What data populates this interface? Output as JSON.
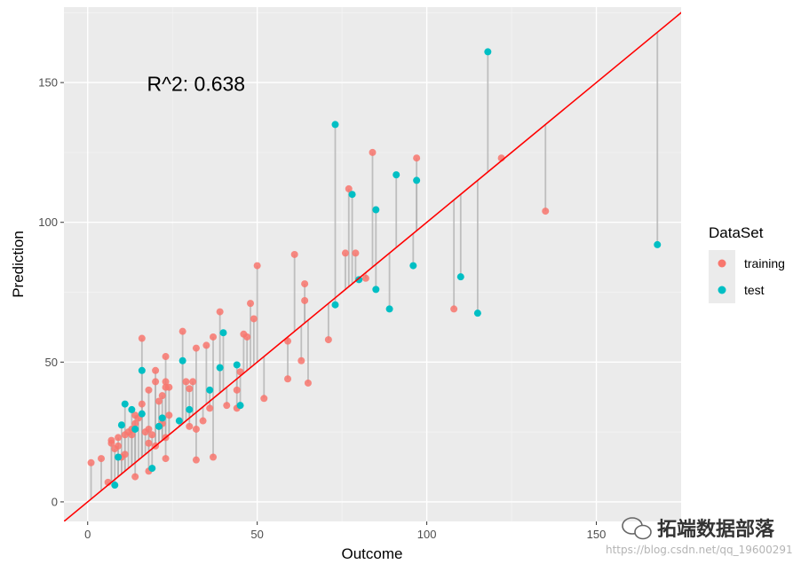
{
  "chart_data": {
    "type": "scatter",
    "xlabel": "Outcome",
    "ylabel": "Prediction",
    "xlim": [
      -7,
      175
    ],
    "ylim": [
      -7,
      177
    ],
    "x_ticks": [
      0,
      50,
      100,
      150
    ],
    "y_ticks": [
      0,
      50,
      100,
      150
    ],
    "grid": true,
    "annotation": "R^2: 0.638",
    "reference_line": "y = x",
    "legend": {
      "title": "DataSet",
      "placement": "right",
      "entries": [
        "training",
        "test"
      ]
    },
    "colors": {
      "training": "#F8766D",
      "test": "#00BFC4",
      "reference": "#FF0000",
      "residual": "#b3b3b3",
      "panel": "#EBEBEB",
      "grid": "#ffffff"
    },
    "series": [
      {
        "name": "training",
        "points": [
          [
            1,
            14
          ],
          [
            4,
            15.5
          ],
          [
            6,
            7
          ],
          [
            7,
            21
          ],
          [
            7,
            22
          ],
          [
            8,
            19
          ],
          [
            9,
            20
          ],
          [
            9,
            23
          ],
          [
            10,
            16
          ],
          [
            11,
            17
          ],
          [
            11,
            24
          ],
          [
            12,
            25
          ],
          [
            13,
            24
          ],
          [
            13,
            26
          ],
          [
            14,
            9
          ],
          [
            14,
            28
          ],
          [
            14,
            31
          ],
          [
            15,
            30
          ],
          [
            16,
            35
          ],
          [
            16,
            58.5
          ],
          [
            17,
            25
          ],
          [
            18,
            11
          ],
          [
            18,
            21
          ],
          [
            18,
            26
          ],
          [
            18,
            40
          ],
          [
            19,
            24
          ],
          [
            20,
            20
          ],
          [
            20,
            43
          ],
          [
            20,
            47
          ],
          [
            21,
            27
          ],
          [
            21,
            36
          ],
          [
            22,
            28
          ],
          [
            22,
            38
          ],
          [
            23,
            15.5
          ],
          [
            23,
            23
          ],
          [
            23,
            41
          ],
          [
            23,
            43
          ],
          [
            23,
            52
          ],
          [
            24,
            41
          ],
          [
            24,
            31
          ],
          [
            28,
            61
          ],
          [
            29,
            43
          ],
          [
            30,
            40.5
          ],
          [
            30,
            27
          ],
          [
            31,
            43
          ],
          [
            32,
            15
          ],
          [
            32,
            26
          ],
          [
            32,
            55
          ],
          [
            34,
            29
          ],
          [
            35,
            56
          ],
          [
            36,
            33.5
          ],
          [
            37,
            59
          ],
          [
            37,
            16
          ],
          [
            39,
            68
          ],
          [
            41,
            34.5
          ],
          [
            44,
            33.5
          ],
          [
            44,
            40
          ],
          [
            45,
            46.5
          ],
          [
            46,
            60
          ],
          [
            47,
            59
          ],
          [
            48,
            71
          ],
          [
            49,
            65.5
          ],
          [
            50,
            84.5
          ],
          [
            52,
            37
          ],
          [
            59,
            57.5
          ],
          [
            59,
            44
          ],
          [
            61,
            88.5
          ],
          [
            63,
            50.5
          ],
          [
            64,
            72
          ],
          [
            64,
            78
          ],
          [
            65,
            42.5
          ],
          [
            71,
            58
          ],
          [
            76,
            89
          ],
          [
            77,
            112
          ],
          [
            79,
            89
          ],
          [
            82,
            80
          ],
          [
            84,
            125
          ],
          [
            97,
            123
          ],
          [
            108,
            69
          ],
          [
            122,
            123
          ],
          [
            135,
            104
          ]
        ]
      },
      {
        "name": "test",
        "points": [
          [
            8,
            6
          ],
          [
            9,
            16
          ],
          [
            10,
            27.5
          ],
          [
            11,
            35
          ],
          [
            13,
            33
          ],
          [
            14,
            26
          ],
          [
            16,
            47
          ],
          [
            16,
            31.5
          ],
          [
            19,
            12
          ],
          [
            21,
            27
          ],
          [
            22,
            30
          ],
          [
            27,
            29
          ],
          [
            28,
            50.5
          ],
          [
            30,
            33
          ],
          [
            36,
            40
          ],
          [
            39,
            48
          ],
          [
            40,
            60.5
          ],
          [
            44,
            49
          ],
          [
            45,
            34.5
          ],
          [
            73,
            135
          ],
          [
            73,
            70.5
          ],
          [
            78,
            110
          ],
          [
            80,
            79.5
          ],
          [
            85,
            104.5
          ],
          [
            85,
            76
          ],
          [
            89,
            69
          ],
          [
            91,
            117
          ],
          [
            96,
            84.5
          ],
          [
            97,
            115
          ],
          [
            110,
            80.5
          ],
          [
            115,
            67.5
          ],
          [
            118,
            161
          ],
          [
            168,
            92
          ]
        ]
      }
    ]
  },
  "watermark": {
    "text": "拓端数据部落",
    "url": "https://blog.csdn.net/qq_19600291"
  }
}
